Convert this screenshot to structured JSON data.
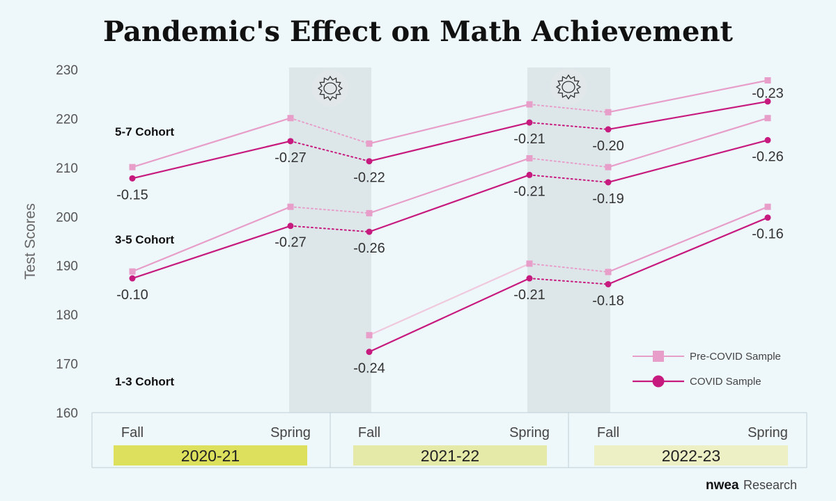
{
  "chart_data": {
    "type": "line",
    "title": "Pandemic's Effect on Math Achievement",
    "ylabel": "Test Scores",
    "ylim": [
      160,
      230
    ],
    "yticks": [
      160,
      170,
      180,
      190,
      200,
      210,
      220,
      230
    ],
    "x": [
      "Fall",
      "Spring",
      "Fall",
      "Spring",
      "Fall",
      "Spring"
    ],
    "years": [
      "2020-21",
      "2021-22",
      "2022-23"
    ],
    "year_colors": [
      "#dde05c",
      "#e6eaa8",
      "#ecf0c4"
    ],
    "school_closure_periods": [
      [
        "2020-21 Spring",
        "2021-22 Fall"
      ],
      [
        "2021-22 Spring",
        "2022-23 Fall"
      ]
    ],
    "legend": {
      "position": "bottom-right",
      "entries": [
        {
          "label": "Pre-COVID Sample",
          "marker": "square",
          "color": "#e79ec9"
        },
        {
          "label": "COVID Sample",
          "marker": "circle",
          "color": "#c71a7e"
        }
      ]
    },
    "cohorts": [
      {
        "name": "5-7 Cohort",
        "pre_covid": [
          210.1,
          220.1,
          214.9,
          222.9,
          221.3,
          227.8
        ],
        "covid": [
          207.8,
          215.4,
          211.3,
          219.2,
          217.8,
          223.5
        ],
        "effect_sizes": [
          "-0.15",
          "-0.27",
          "-0.22",
          "-0.21",
          "-0.20",
          "-0.23"
        ]
      },
      {
        "name": "3-5 Cohort",
        "pre_covid": [
          188.8,
          202.0,
          200.7,
          211.9,
          210.1,
          220.1
        ],
        "covid": [
          187.4,
          198.1,
          196.9,
          208.5,
          207.0,
          215.6
        ],
        "effect_sizes": [
          "-0.10",
          "-0.27",
          "-0.26",
          "-0.21",
          "-0.19",
          "-0.26"
        ]
      },
      {
        "name": "1-3 Cohort",
        "pre_covid": [
          null,
          null,
          175.8,
          190.4,
          188.7,
          202.0
        ],
        "covid": [
          null,
          null,
          172.4,
          187.4,
          186.2,
          199.8
        ],
        "effect_sizes": [
          null,
          null,
          "-0.24",
          "-0.21",
          "-0.18",
          "-0.16"
        ]
      }
    ]
  },
  "colors": {
    "pre_covid": "#e79ec9",
    "pre_covid_light": "#f0c8dd",
    "covid": "#c71a7e",
    "closure_band": "#dde7ea",
    "background": "#eef7fa"
  },
  "branding": {
    "logo_word": "nwea",
    "logo_suffix": "Research"
  }
}
